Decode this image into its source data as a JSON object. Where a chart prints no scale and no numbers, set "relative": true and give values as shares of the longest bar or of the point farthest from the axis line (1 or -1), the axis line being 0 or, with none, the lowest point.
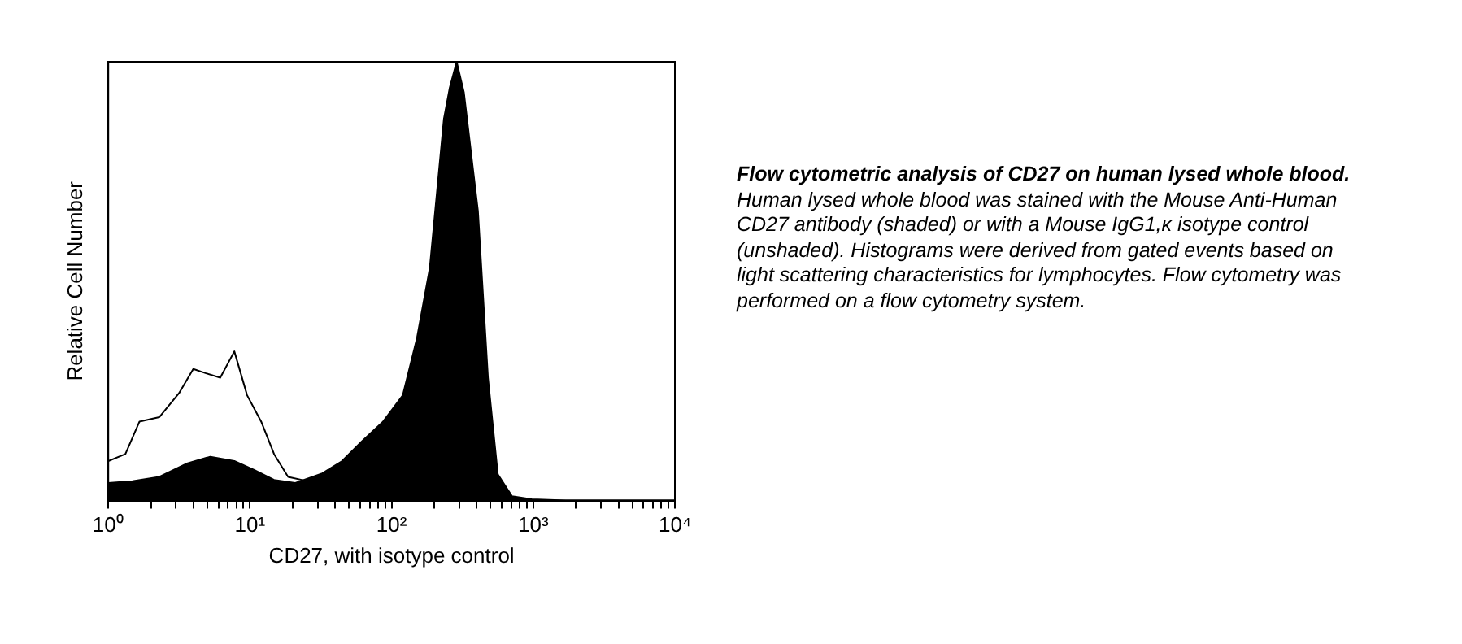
{
  "chart_data": {
    "type": "area",
    "title": "Flow cytometric analysis of CD27 on human lysed whole blood.",
    "annotations": [
      "Human lysed whole blood was stained with the Mouse Anti-Human CD27 antibody (shaded) or with a Mouse IgG1,κ isotype control (unshaded).  Histograms were derived from gated events based on light scattering characteristics for lymphocytes. Flow cytometry was performed on a flow cytometry system."
    ],
    "xlabel": "CD27, with isotype control",
    "ylabel": "Relative Cell Number",
    "log": "x",
    "relative": true,
    "legend": false,
    "grid": false,
    "marker": "none",
    "xlim": [
      1,
      10000
    ],
    "xticks": [
      {
        "value": 1,
        "label": "10⁰"
      },
      {
        "value": 2,
        "label": null
      },
      {
        "value": 3,
        "label": null
      },
      {
        "value": 4,
        "label": null
      },
      {
        "value": 5,
        "label": null
      },
      {
        "value": 6,
        "label": null
      },
      {
        "value": 7,
        "label": null
      },
      {
        "value": 8,
        "label": null
      },
      {
        "value": 9,
        "label": null
      },
      {
        "value": 10,
        "label": "10¹"
      },
      {
        "value": 20,
        "label": null
      },
      {
        "value": 30,
        "label": null
      },
      {
        "value": 40,
        "label": null
      },
      {
        "value": 50,
        "label": null
      },
      {
        "value": 60,
        "label": null
      },
      {
        "value": 70,
        "label": null
      },
      {
        "value": 80,
        "label": null
      },
      {
        "value": 90,
        "label": null
      },
      {
        "value": 100,
        "label": "10²"
      },
      {
        "value": 200,
        "label": null
      },
      {
        "value": 300,
        "label": null
      },
      {
        "value": 400,
        "label": null
      },
      {
        "value": 500,
        "label": null
      },
      {
        "value": 600,
        "label": null
      },
      {
        "value": 700,
        "label": null
      },
      {
        "value": 800,
        "label": null
      },
      {
        "value": 900,
        "label": null
      },
      {
        "value": 1000,
        "label": "10³"
      },
      {
        "value": 2000,
        "label": null
      },
      {
        "value": 3000,
        "label": null
      },
      {
        "value": 4000,
        "label": null
      },
      {
        "value": 5000,
        "label": null
      },
      {
        "value": 6000,
        "label": null
      },
      {
        "value": 7000,
        "label": null
      },
      {
        "value": 8000,
        "label": null
      },
      {
        "value": 9000,
        "label": null
      },
      {
        "value": 10000,
        "label": "10⁴"
      }
    ],
    "series": [
      {
        "type": "area",
        "color": "#000000",
        "x": [
          1,
          1.48,
          2.29,
          3.55,
          5.25,
          7.76,
          10.7,
          14.8,
          20.9,
          32.4,
          44.7,
          61.7,
          87.1,
          120,
          151,
          186,
          234,
          257,
          288,
          324,
          407,
          479,
          562,
          708,
          977,
          1700,
          10000
        ],
        "values": [
          0.04,
          0.044,
          0.054,
          0.084,
          0.1,
          0.09,
          0.07,
          0.047,
          0.04,
          0.062,
          0.09,
          0.135,
          0.18,
          0.24,
          0.37,
          0.53,
          0.87,
          0.94,
          1,
          0.93,
          0.66,
          0.28,
          0.06,
          0.01,
          0.003,
          0,
          0
        ]
      },
      {
        "type": "line",
        "color": "#000000",
        "x": [
          1,
          1.32,
          1.66,
          2.29,
          3.16,
          3.98,
          4.9,
          6.17,
          7.76,
          9.55,
          12,
          14.8,
          18.6,
          25.7
        ],
        "values": [
          0.09,
          0.106,
          0.18,
          0.19,
          0.245,
          0.3,
          0.29,
          0.28,
          0.34,
          0.24,
          0.18,
          0.106,
          0.054,
          0.044
        ]
      }
    ]
  }
}
